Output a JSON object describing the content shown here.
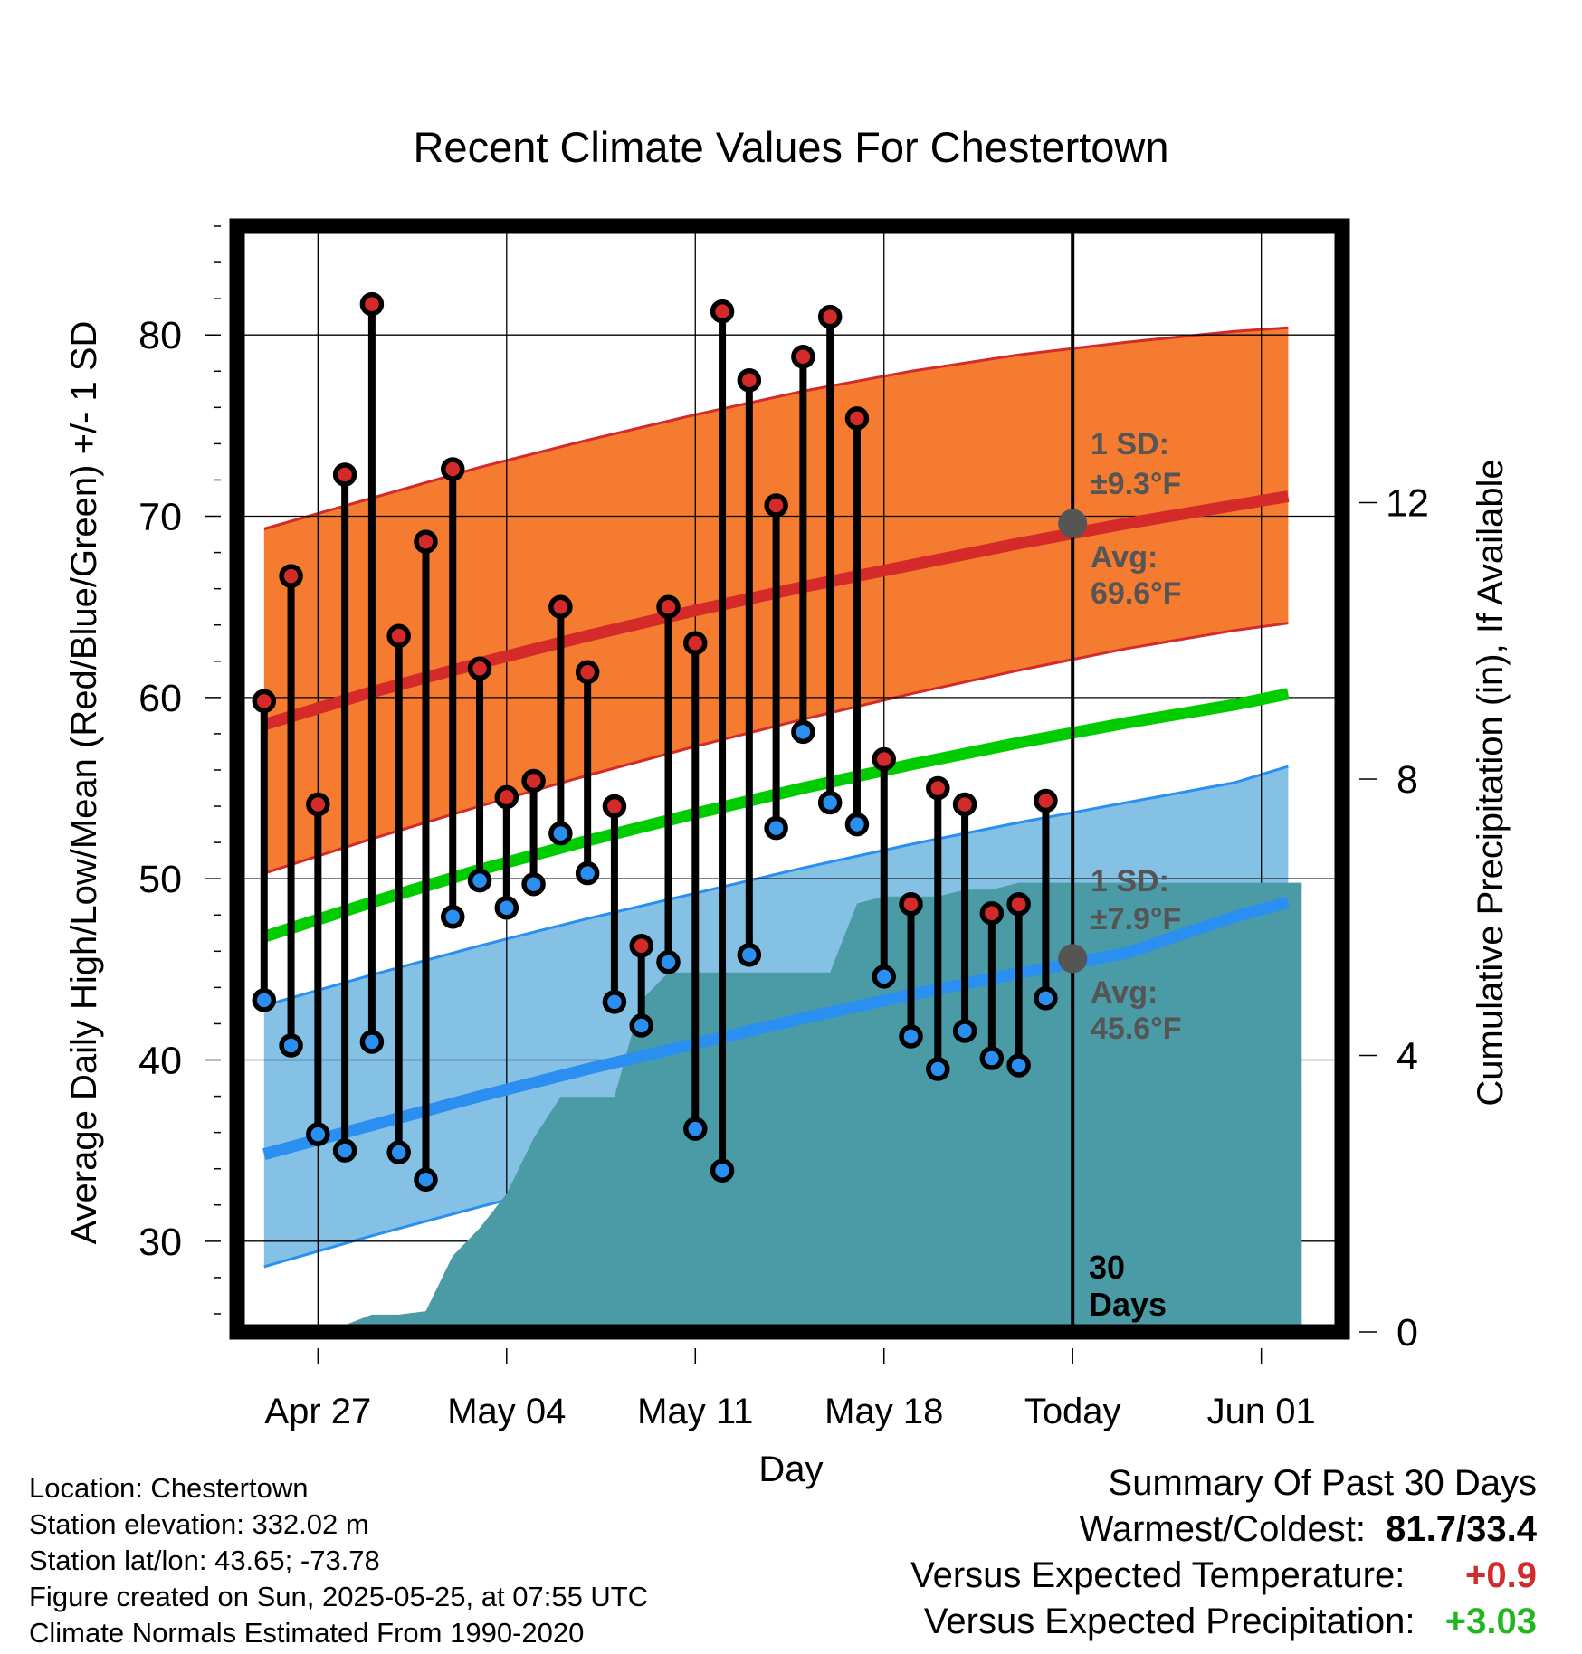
{
  "title": "Recent Climate Values For Chestertown",
  "info": {
    "location": "Location: Chestertown",
    "elevation": "Station elevation: 332.02 m",
    "latlon": "Station lat/lon: 43.65; -73.78",
    "created": "Figure created on Sun, 2025-05-25, at 07:55 UTC",
    "normals": "Climate Normals Estimated From 1990-2020"
  },
  "summary": {
    "heading": "Summary Of Past 30 Days",
    "warmest_label": "Warmest/Coldest:",
    "warmest_value": "81.7/33.4",
    "temp_label": "Versus Expected Temperature:",
    "temp_value": "+0.9",
    "precip_label": "Versus Expected Precipitation:",
    "precip_value": "+3.03"
  },
  "colors": {
    "high_band": "#f47b30",
    "high_line": "#d42a2a",
    "low_band": "#85c1e5",
    "low_line": "#2a8ff0",
    "mean_line": "#00cc00",
    "precip": "#4a9ba5",
    "annotation": "#555555",
    "high_dot": "#d42a2a",
    "low_dot": "#2a8ff0"
  },
  "chart_data": {
    "type": "line",
    "title": "Recent Climate Values For Chestertown",
    "xlabel": "Day",
    "ylabel": "Average Daily High/Low/Mean (Red/Blue/Green) +/- 1 SD",
    "y2label": "Cumulative Precipitation (in), If Available",
    "xlim": [
      -3,
      38
    ],
    "ylim": [
      25,
      86
    ],
    "y2lim": [
      0,
      16
    ],
    "x_ticks": [
      {
        "x": 0,
        "label": "Apr 27"
      },
      {
        "x": 7,
        "label": "May 04"
      },
      {
        "x": 14,
        "label": "May 11"
      },
      {
        "x": 21,
        "label": "May 18"
      },
      {
        "x": 28,
        "label": "Today"
      },
      {
        "x": 35,
        "label": "Jun 01"
      }
    ],
    "y_ticks": [
      30,
      40,
      50,
      60,
      70,
      80
    ],
    "y2_ticks": [
      0,
      4,
      8,
      12
    ],
    "today_x": 28,
    "today_label_1": "30",
    "today_label_2": "Days",
    "normals_x": [
      -2,
      2,
      6,
      10,
      14,
      18,
      22,
      26,
      30,
      34,
      36
    ],
    "normal_high": [
      58.5,
      60.3,
      61.9,
      63.4,
      64.8,
      66.1,
      67.3,
      68.5,
      69.6,
      70.6,
      71.1
    ],
    "normal_high_upper": [
      69.3,
      71.0,
      72.7,
      74.2,
      75.6,
      76.9,
      78.0,
      78.9,
      79.6,
      80.2,
      80.4
    ],
    "normal_high_lower": [
      50.3,
      52.2,
      54.0,
      55.7,
      57.3,
      58.8,
      60.2,
      61.5,
      62.7,
      63.7,
      64.1
    ],
    "normal_mean": [
      46.8,
      48.7,
      50.5,
      52.1,
      53.6,
      55.0,
      56.3,
      57.5,
      58.6,
      59.6,
      60.2
    ],
    "normal_low": [
      34.8,
      36.4,
      38.0,
      39.5,
      40.9,
      42.3,
      43.6,
      44.8,
      45.9,
      47.9,
      48.7
    ],
    "normal_low_upper": [
      43.0,
      44.7,
      46.3,
      47.8,
      49.2,
      50.6,
      51.9,
      53.1,
      54.2,
      55.3,
      56.2
    ],
    "normal_low_lower": [
      28.6,
      30.3,
      31.9,
      33.4,
      34.8,
      36.1,
      37.3,
      38.4,
      39.3,
      41.4,
      42.4
    ],
    "days": [
      -2,
      -1,
      0,
      1,
      2,
      3,
      4,
      5,
      6,
      7,
      8,
      9,
      10,
      11,
      12,
      13,
      14,
      15,
      16,
      17,
      18,
      19,
      20,
      21,
      22,
      23,
      24,
      25,
      26,
      27
    ],
    "highs": [
      59.8,
      66.7,
      54.1,
      72.3,
      81.7,
      63.4,
      68.6,
      72.6,
      61.6,
      54.5,
      55.4,
      65.0,
      61.4,
      54.0,
      46.3,
      65.0,
      63.0,
      81.3,
      77.5,
      70.6,
      78.8,
      81.0,
      75.4,
      56.6,
      48.6,
      55.0,
      54.1,
      48.1,
      48.6,
      54.3
    ],
    "lows": [
      43.3,
      40.8,
      35.9,
      35.0,
      41.0,
      34.9,
      33.4,
      47.9,
      49.9,
      48.4,
      49.7,
      52.5,
      50.3,
      43.2,
      41.9,
      45.4,
      36.2,
      33.9,
      45.8,
      52.8,
      58.1,
      54.2,
      53.0,
      44.6,
      41.3,
      39.5,
      41.6,
      40.1,
      39.7,
      43.4
    ],
    "precip_x": [
      -2.5,
      -1.2,
      0,
      1,
      2,
      3,
      4,
      5,
      6,
      7,
      8,
      9,
      10,
      11,
      12,
      13,
      14,
      15,
      16,
      17,
      18,
      19,
      20,
      21,
      22,
      23,
      24,
      25,
      26,
      27,
      28,
      36.5
    ],
    "precip_cum": [
      0.0,
      0.1,
      0.1,
      0.1,
      0.25,
      0.25,
      0.3,
      1.1,
      1.5,
      2.0,
      2.8,
      3.4,
      3.4,
      3.4,
      4.8,
      5.2,
      5.2,
      5.2,
      5.2,
      5.2,
      5.2,
      5.2,
      6.2,
      6.3,
      6.3,
      6.3,
      6.4,
      6.4,
      6.5,
      6.5,
      6.5,
      6.5
    ],
    "annotations": {
      "high_sd": "1 SD:",
      "high_sd_value": "±9.3°F",
      "high_avg": "Avg:",
      "high_avg_value": "69.6°F",
      "low_sd": "1 SD:",
      "low_sd_value": "±7.9°F",
      "low_avg": "Avg:",
      "low_avg_value": "45.6°F",
      "today_high_avg": 69.6,
      "today_low_avg": 45.6
    }
  }
}
